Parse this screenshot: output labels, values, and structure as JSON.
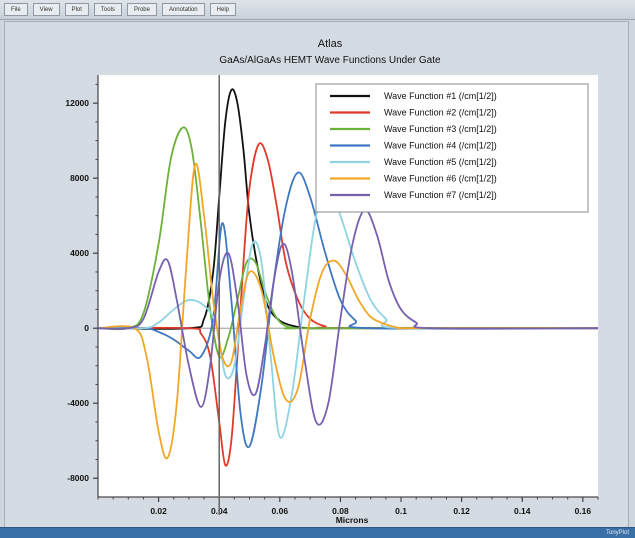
{
  "menubar": {
    "items": [
      "File",
      "View",
      "Plot",
      "Tools",
      "Probe",
      "Annotation",
      "Help"
    ]
  },
  "status": {
    "right_text": "TonyPlot"
  },
  "chart_data": {
    "type": "line",
    "title": "Atlas",
    "subtitle": "GaAs/AlGaAs HEMT Wave Functions Under Gate",
    "xlabel": "Microns",
    "ylabel": "",
    "xlim": [
      0.0,
      0.165
    ],
    "ylim": [
      -9000,
      13500
    ],
    "xticks": [
      0.02,
      0.04,
      0.06,
      0.08,
      0.1,
      0.12,
      0.14,
      0.16
    ],
    "xtick_labels": [
      "0.02",
      "0.04",
      "0.06",
      "0.08",
      "0.1",
      "0.12",
      "0.14",
      "0.16"
    ],
    "yticks": [
      -8000,
      -4000,
      0,
      4000,
      8000,
      12000
    ],
    "ytick_labels": [
      "-8000",
      "-4000",
      "0",
      "4000",
      "8000",
      "12000"
    ],
    "marker_line_x": 0.04,
    "legend_position": "top-right",
    "series": [
      {
        "name": "Wave Function #1 (/cm[1/2])",
        "color": "#111111",
        "x": [
          0.0,
          0.03,
          0.035,
          0.038,
          0.04,
          0.042,
          0.044,
          0.046,
          0.048,
          0.05,
          0.053,
          0.056,
          0.06,
          0.065,
          0.07,
          0.08,
          0.165
        ],
        "y": [
          0,
          0,
          500,
          3000,
          7000,
          11000,
          12700,
          12000,
          9500,
          6000,
          3000,
          1200,
          400,
          100,
          0,
          0,
          0
        ]
      },
      {
        "name": "Wave Function #2 (/cm[1/2])",
        "color": "#e03a2a",
        "x": [
          0.0,
          0.03,
          0.034,
          0.037,
          0.04,
          0.042,
          0.044,
          0.046,
          0.048,
          0.05,
          0.053,
          0.056,
          0.059,
          0.062,
          0.066,
          0.07,
          0.075,
          0.08,
          0.165
        ],
        "y": [
          0,
          0,
          -300,
          -1500,
          -5000,
          -7300,
          -6000,
          -1500,
          3500,
          7500,
          9800,
          9000,
          6500,
          3500,
          1500,
          500,
          100,
          0,
          0
        ]
      },
      {
        "name": "Wave Function #3 (/cm[1/2])",
        "color": "#6cb23a",
        "x": [
          0.0,
          0.01,
          0.015,
          0.02,
          0.024,
          0.028,
          0.031,
          0.034,
          0.037,
          0.04,
          0.043,
          0.046,
          0.049,
          0.052,
          0.055,
          0.058,
          0.061,
          0.065,
          0.07,
          0.165
        ],
        "y": [
          0,
          0,
          800,
          4500,
          9000,
          10700,
          9500,
          5500,
          1000,
          -1500,
          -500,
          1500,
          3500,
          3500,
          2000,
          800,
          200,
          0,
          0,
          0
        ]
      },
      {
        "name": "Wave Function #4 (/cm[1/2])",
        "color": "#3f78c2",
        "x": [
          0.0,
          0.015,
          0.02,
          0.025,
          0.03,
          0.034,
          0.038,
          0.041,
          0.044,
          0.047,
          0.05,
          0.054,
          0.058,
          0.062,
          0.066,
          0.07,
          0.075,
          0.08,
          0.085,
          0.09,
          0.165
        ],
        "y": [
          0,
          0,
          -200,
          -600,
          -1200,
          -1500,
          500,
          5600,
          1500,
          -4500,
          -6300,
          -3000,
          2500,
          6500,
          8300,
          7000,
          4000,
          1500,
          400,
          0,
          0
        ]
      },
      {
        "name": "Wave Function #5 (/cm[1/2])",
        "color": "#8fd3e3",
        "x": [
          0.0,
          0.015,
          0.02,
          0.025,
          0.03,
          0.035,
          0.039,
          0.042,
          0.045,
          0.048,
          0.051,
          0.054,
          0.057,
          0.06,
          0.064,
          0.068,
          0.072,
          0.076,
          0.08,
          0.085,
          0.09,
          0.095,
          0.1,
          0.165
        ],
        "y": [
          0,
          0,
          300,
          1000,
          1500,
          1200,
          200,
          -2500,
          -2000,
          1500,
          4500,
          3500,
          -1500,
          -5800,
          -3500,
          1500,
          6000,
          7400,
          6000,
          3500,
          1500,
          500,
          0,
          0
        ]
      },
      {
        "name": "Wave Function #6 (/cm[1/2])",
        "color": "#f2a627",
        "x": [
          0.0,
          0.012,
          0.016,
          0.02,
          0.023,
          0.026,
          0.029,
          0.032,
          0.035,
          0.038,
          0.041,
          0.044,
          0.047,
          0.05,
          0.054,
          0.058,
          0.062,
          0.066,
          0.07,
          0.074,
          0.078,
          0.082,
          0.086,
          0.09,
          0.095,
          0.1,
          0.105,
          0.165
        ],
        "y": [
          0,
          0,
          -1500,
          -5500,
          -6900,
          -4000,
          3000,
          8700,
          6000,
          1500,
          -1500,
          -1800,
          1000,
          3000,
          2000,
          -1500,
          -3800,
          -3200,
          500,
          3000,
          3600,
          2800,
          1500,
          600,
          200,
          0,
          0,
          0
        ]
      },
      {
        "name": "Wave Function #7 (/cm[1/2])",
        "color": "#7860b0",
        "x": [
          0.0,
          0.01,
          0.015,
          0.02,
          0.023,
          0.026,
          0.03,
          0.034,
          0.037,
          0.04,
          0.043,
          0.046,
          0.049,
          0.052,
          0.055,
          0.058,
          0.061,
          0.064,
          0.068,
          0.072,
          0.076,
          0.08,
          0.084,
          0.088,
          0.092,
          0.096,
          0.1,
          0.105,
          0.11,
          0.165
        ],
        "y": [
          0,
          0,
          500,
          3000,
          3600,
          1500,
          -2000,
          -4200,
          -2000,
          2500,
          4000,
          1500,
          -2500,
          -3500,
          -1000,
          2500,
          4500,
          3000,
          -1500,
          -5000,
          -4000,
          500,
          4500,
          6300,
          5000,
          2500,
          1000,
          300,
          0,
          0
        ]
      }
    ]
  }
}
